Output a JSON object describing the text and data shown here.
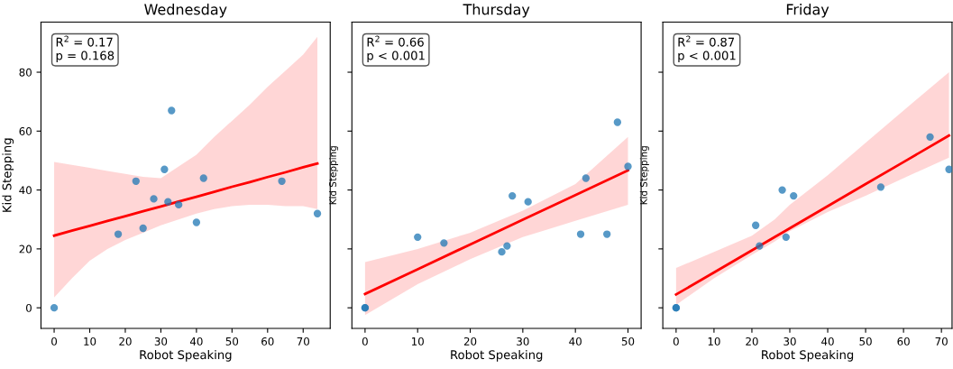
{
  "chart_data": [
    {
      "type": "scatter",
      "title": "Wednesday",
      "xlabel": "Robot Speaking",
      "ylabel": "Kid Stepping",
      "annotations": [
        "R$^{2}$ = 0.17\np = 0.168"
      ],
      "xlim": [
        -3.7,
        77.6
      ],
      "ylim": [
        -7,
        97
      ],
      "xticks": [
        0,
        10,
        20,
        30,
        40,
        50,
        60,
        70
      ],
      "yticks": [
        0,
        20,
        40,
        60,
        80
      ],
      "grid": false,
      "series": [
        {
          "color": "#1f77b4",
          "marker": "circle",
          "x": [
            0,
            18,
            23,
            25,
            28,
            31,
            32,
            33,
            35,
            40,
            42,
            64,
            74
          ],
          "values": [
            0,
            25,
            43,
            27,
            37,
            47,
            36,
            67,
            35,
            29,
            44,
            43,
            32
          ]
        },
        {
          "type": "line",
          "color": "#ff0000",
          "x": [
            0,
            5,
            10,
            15,
            20,
            25,
            30,
            35,
            40,
            45,
            50,
            55,
            60,
            65,
            70,
            74
          ],
          "values": [
            24.5,
            26.2,
            27.8,
            29.5,
            31.1,
            32.8,
            34.4,
            36.1,
            37.7,
            39.4,
            41.1,
            42.7,
            44.4,
            46,
            47.7,
            49
          ],
          "lower": [
            3.5,
            10,
            16,
            20,
            23,
            25.5,
            28,
            30,
            32,
            33.5,
            34.5,
            35,
            35,
            34.5,
            34.5,
            33.5
          ],
          "upper": [
            49.5,
            48.5,
            47.5,
            46.5,
            45.5,
            44.5,
            44,
            48,
            52,
            58,
            63.5,
            69,
            75,
            80.5,
            86,
            92
          ]
        }
      ]
    },
    {
      "type": "scatter",
      "title": "Thursday",
      "xlabel": "Robot Speaking",
      "ylabel": "Kid Stepping",
      "annotations": [
        "R$^{2}$ = 0.66\np < 0.001"
      ],
      "xlim": [
        -2.5,
        52.5
      ],
      "ylim": [
        -7,
        97
      ],
      "xticks": [
        0,
        10,
        20,
        30,
        40,
        50
      ],
      "yticks": [
        0,
        20,
        40,
        60,
        80
      ],
      "tick_labels": "x",
      "grid": false,
      "series": [
        {
          "color": "#1f77b4",
          "marker": "circle",
          "x": [
            0,
            0,
            10,
            15,
            26,
            27,
            28,
            31,
            41,
            42,
            46,
            48,
            50
          ],
          "values": [
            0,
            0,
            24,
            22,
            19,
            21,
            38,
            36,
            25,
            44,
            25,
            63,
            48
          ]
        },
        {
          "type": "line",
          "color": "#ff0000",
          "x": [
            0,
            10,
            20,
            30,
            40,
            50
          ],
          "values": [
            4.7,
            13.1,
            21.5,
            29.9,
            38.3,
            46.7
          ],
          "lower": [
            -2.5,
            8,
            16.5,
            24,
            29.5,
            35
          ],
          "upper": [
            15.5,
            20,
            25.5,
            33,
            42,
            58
          ]
        }
      ]
    },
    {
      "type": "scatter",
      "title": "Friday",
      "xlabel": "Robot Speaking",
      "ylabel": "Kid Stepping",
      "annotations": [
        "R$^{2}$ = 0.87\np < 0.001"
      ],
      "xlim": [
        -3.5,
        72.8
      ],
      "ylim": [
        -7,
        97
      ],
      "xticks": [
        0,
        10,
        20,
        30,
        40,
        50,
        60,
        70
      ],
      "yticks": [
        0,
        20,
        40,
        60,
        80
      ],
      "tick_labels": "x",
      "grid": false,
      "series": [
        {
          "color": "#1f77b4",
          "marker": "circle",
          "x": [
            0,
            0,
            21,
            22,
            28,
            29,
            31,
            54,
            67,
            72
          ],
          "values": [
            0,
            0,
            28,
            21,
            40,
            24,
            38,
            41,
            58,
            47
          ]
        },
        {
          "type": "line",
          "color": "#ff0000",
          "x": [
            0,
            10,
            20,
            26,
            30,
            40,
            50,
            60,
            72
          ],
          "values": [
            4.5,
            12,
            19.5,
            24,
            27,
            34.5,
            42,
            49.5,
            58.5
          ],
          "lower": [
            1,
            10,
            18,
            22.5,
            26,
            32.5,
            38,
            44,
            51
          ],
          "upper": [
            13.5,
            19,
            24.5,
            30,
            35,
            45,
            56,
            67,
            80
          ]
        }
      ]
    }
  ]
}
